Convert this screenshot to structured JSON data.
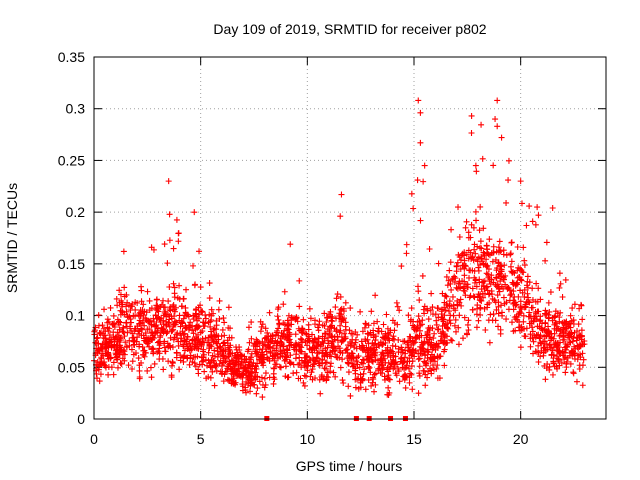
{
  "chart_data": {
    "type": "scatter",
    "title": "Day 109 of 2019, SRMTID for receiver p802",
    "xlabel": "GPS time / hours",
    "ylabel": "SRMTID / TECUs",
    "xlim": [
      0,
      24
    ],
    "ylim": [
      0,
      0.35
    ],
    "x_ticks": [
      0,
      5,
      10,
      15,
      20
    ],
    "x_tick_labels": [
      "0",
      "5",
      "10",
      "15",
      "20"
    ],
    "y_ticks": [
      0,
      0.05,
      0.1,
      0.15,
      0.2,
      0.25,
      0.3,
      0.35
    ],
    "y_tick_labels": [
      "0",
      "0.05",
      "0.1",
      "0.15",
      "0.2",
      "0.25",
      "0.3",
      "0.35"
    ],
    "grid": true,
    "marker": "+",
    "color": "#ff0000",
    "data_range_hours": [
      0,
      23
    ],
    "envelope": [
      {
        "t": 0.0,
        "base": 0.065,
        "spread": 0.025,
        "peak": 0.1
      },
      {
        "t": 1.0,
        "base": 0.07,
        "spread": 0.03,
        "peak": 0.12
      },
      {
        "t": 1.5,
        "base": 0.085,
        "spread": 0.035,
        "peak": 0.16
      },
      {
        "t": 2.5,
        "base": 0.08,
        "spread": 0.035,
        "peak": 0.14
      },
      {
        "t": 3.5,
        "base": 0.09,
        "spread": 0.04,
        "peak": 0.23
      },
      {
        "t": 4.5,
        "base": 0.085,
        "spread": 0.035,
        "peak": 0.2
      },
      {
        "t": 5.5,
        "base": 0.07,
        "spread": 0.03,
        "peak": 0.13
      },
      {
        "t": 7.0,
        "base": 0.045,
        "spread": 0.02,
        "peak": 0.09
      },
      {
        "t": 8.5,
        "base": 0.07,
        "spread": 0.03,
        "peak": 0.11
      },
      {
        "t": 9.2,
        "base": 0.075,
        "spread": 0.03,
        "peak": 0.17
      },
      {
        "t": 10.5,
        "base": 0.065,
        "spread": 0.03,
        "peak": 0.13
      },
      {
        "t": 11.5,
        "base": 0.08,
        "spread": 0.035,
        "peak": 0.22
      },
      {
        "t": 12.5,
        "base": 0.055,
        "spread": 0.03,
        "peak": 0.11
      },
      {
        "t": 13.5,
        "base": 0.065,
        "spread": 0.03,
        "peak": 0.13
      },
      {
        "t": 14.5,
        "base": 0.055,
        "spread": 0.025,
        "peak": 0.15
      },
      {
        "t": 15.2,
        "base": 0.08,
        "spread": 0.04,
        "peak": 0.31
      },
      {
        "t": 16.0,
        "base": 0.07,
        "spread": 0.035,
        "peak": 0.15
      },
      {
        "t": 17.0,
        "base": 0.12,
        "spread": 0.045,
        "peak": 0.2
      },
      {
        "t": 17.8,
        "base": 0.14,
        "spread": 0.05,
        "peak": 0.29
      },
      {
        "t": 19.0,
        "base": 0.13,
        "spread": 0.05,
        "peak": 0.31
      },
      {
        "t": 20.0,
        "base": 0.12,
        "spread": 0.045,
        "peak": 0.23
      },
      {
        "t": 21.0,
        "base": 0.08,
        "spread": 0.03,
        "peak": 0.2
      },
      {
        "t": 22.0,
        "base": 0.075,
        "spread": 0.03,
        "peak": 0.15
      },
      {
        "t": 23.0,
        "base": 0.065,
        "spread": 0.025,
        "peak": 0.11
      }
    ],
    "highlight_points": [
      {
        "x": 3.5,
        "y": 0.23
      },
      {
        "x": 4.7,
        "y": 0.2
      },
      {
        "x": 11.6,
        "y": 0.217
      },
      {
        "x": 15.2,
        "y": 0.308
      },
      {
        "x": 15.3,
        "y": 0.296
      },
      {
        "x": 15.3,
        "y": 0.267
      },
      {
        "x": 15.5,
        "y": 0.245
      },
      {
        "x": 17.7,
        "y": 0.293
      },
      {
        "x": 17.9,
        "y": 0.245
      },
      {
        "x": 18.9,
        "y": 0.308
      },
      {
        "x": 18.8,
        "y": 0.29
      },
      {
        "x": 18.9,
        "y": 0.283
      },
      {
        "x": 20.0,
        "y": 0.23
      },
      {
        "x": 21.5,
        "y": 0.204
      },
      {
        "x": 9.2,
        "y": 0.169
      },
      {
        "x": 2.7,
        "y": 0.166
      },
      {
        "x": 1.4,
        "y": 0.162
      }
    ],
    "zero_markers": [
      8.1,
      12.3,
      12.9,
      13.9,
      14.6
    ]
  }
}
